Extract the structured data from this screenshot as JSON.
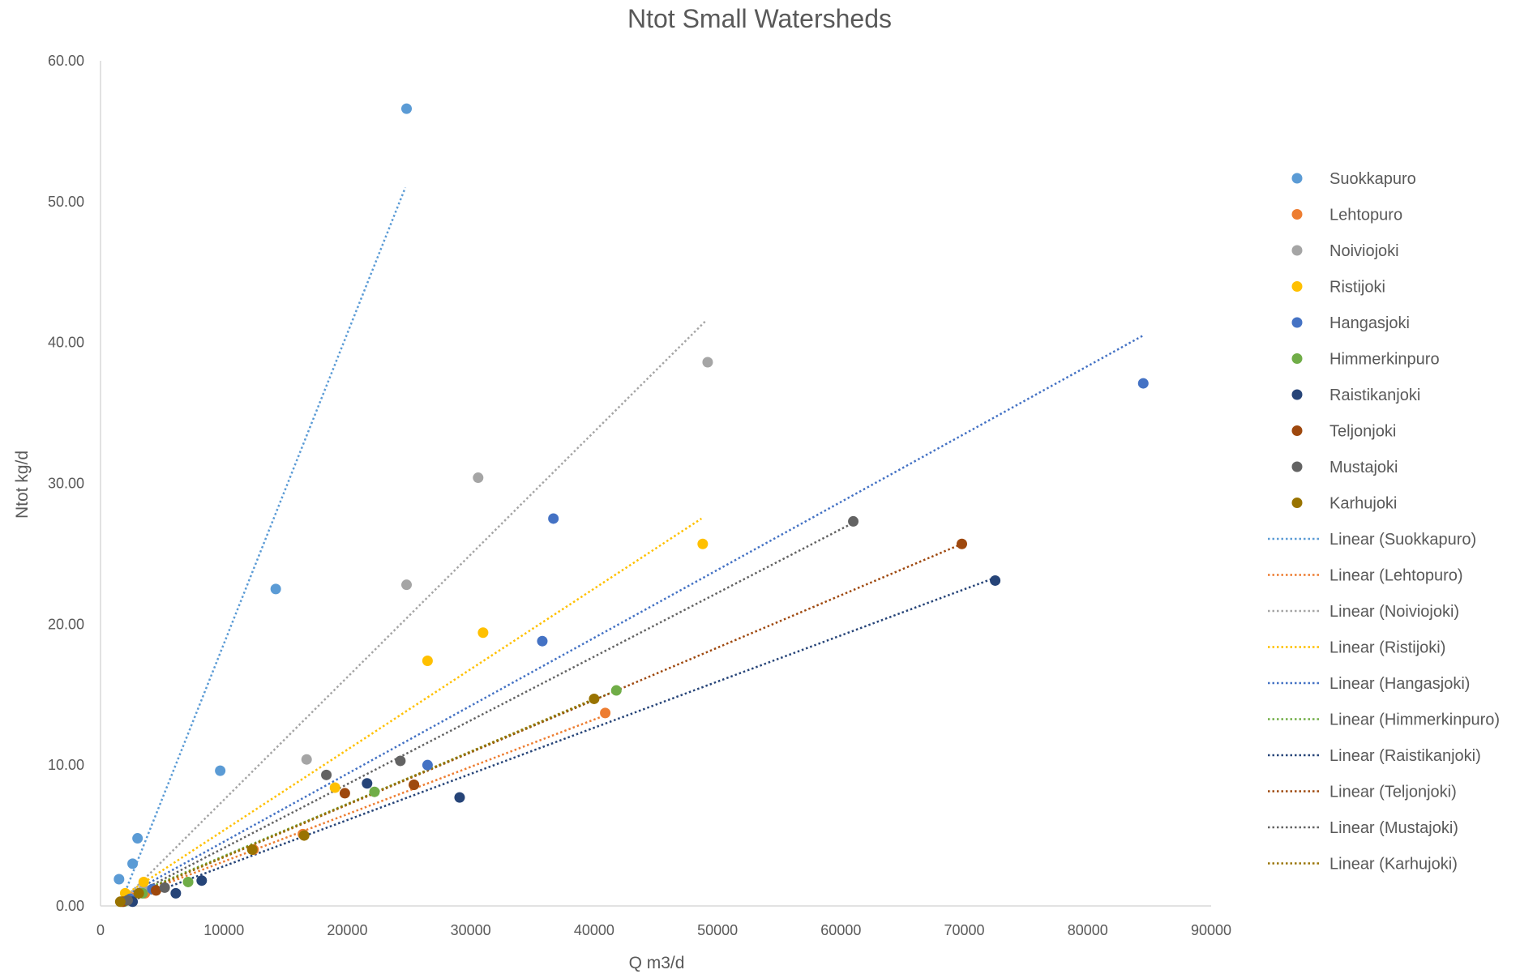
{
  "chart_data": {
    "type": "scatter",
    "title": "Ntot Small Watersheds",
    "xlabel": "Q m3/d",
    "ylabel": "Ntot kg/d",
    "xlim": [
      0,
      90000
    ],
    "ylim": [
      0,
      60
    ],
    "x_ticks": [
      "0",
      "10000",
      "20000",
      "30000",
      "40000",
      "50000",
      "60000",
      "70000",
      "80000",
      "90000"
    ],
    "y_ticks": [
      "0.00",
      "10.00",
      "20.00",
      "30.00",
      "40.00",
      "50.00",
      "60.00"
    ],
    "grid": false,
    "legend_position": "right",
    "series": [
      {
        "name": "Suokkapuro",
        "color": "#5B9BD5",
        "trend_label": "Linear (Suokkapuro)",
        "trend": [
          [
            2000,
            1.0
          ],
          [
            24700,
            51.0
          ]
        ],
        "points": [
          [
            1500,
            1.9
          ],
          [
            2600,
            3.0
          ],
          [
            3000,
            4.8
          ],
          [
            9700,
            9.6
          ],
          [
            14200,
            22.5
          ],
          [
            24800,
            56.6
          ]
        ]
      },
      {
        "name": "Lehtopuro",
        "color": "#ED7D31",
        "trend_label": "Linear (Lehtopuro)",
        "trend": [
          [
            1500,
            0.3
          ],
          [
            40800,
            13.5
          ]
        ],
        "points": [
          [
            1700,
            0.3
          ],
          [
            2500,
            0.6
          ],
          [
            3600,
            0.9
          ],
          [
            12400,
            4.0
          ],
          [
            16400,
            5.1
          ],
          [
            25400,
            8.6
          ],
          [
            40900,
            13.7
          ]
        ]
      },
      {
        "name": "Noiviojoki",
        "color": "#A5A5A5",
        "trend_label": "Linear (Noiviojoki)",
        "trend": [
          [
            2500,
            1.0
          ],
          [
            49000,
            41.5
          ]
        ],
        "points": [
          [
            2300,
            0.6
          ],
          [
            3500,
            1.2
          ],
          [
            16700,
            10.4
          ],
          [
            24800,
            22.8
          ],
          [
            30600,
            30.4
          ],
          [
            49200,
            38.6
          ]
        ]
      },
      {
        "name": "Ristijoki",
        "color": "#FFC000",
        "trend_label": "Linear (Ristijoki)",
        "trend": [
          [
            2000,
            0.8
          ],
          [
            48700,
            27.5
          ]
        ],
        "points": [
          [
            2000,
            0.9
          ],
          [
            3500,
            1.7
          ],
          [
            19000,
            8.4
          ],
          [
            26500,
            17.4
          ],
          [
            31000,
            19.4
          ],
          [
            48800,
            25.7
          ]
        ]
      },
      {
        "name": "Hangasjoki",
        "color": "#4472C4",
        "trend_label": "Linear (Hangasjoki)",
        "trend": [
          [
            2000,
            0.7
          ],
          [
            84500,
            40.5
          ]
        ],
        "points": [
          [
            2400,
            0.5
          ],
          [
            4200,
            1.2
          ],
          [
            26500,
            10.0
          ],
          [
            35800,
            18.8
          ],
          [
            36700,
            27.5
          ],
          [
            84500,
            37.1
          ]
        ]
      },
      {
        "name": "Himmerkinpuro",
        "color": "#70AD47",
        "trend_label": "Linear (Himmerkinpuro)",
        "trend": [
          [
            1500,
            0.4
          ],
          [
            41800,
            15.3
          ]
        ],
        "points": [
          [
            1900,
            0.3
          ],
          [
            3400,
            0.9
          ],
          [
            7100,
            1.7
          ],
          [
            22200,
            8.1
          ],
          [
            41800,
            15.3
          ]
        ]
      },
      {
        "name": "Raistikanjoki",
        "color": "#264478",
        "trend_label": "Linear (Raistikanjoki)",
        "trend": [
          [
            2000,
            0.2
          ],
          [
            72500,
            23.3
          ]
        ],
        "points": [
          [
            2600,
            0.3
          ],
          [
            6100,
            0.9
          ],
          [
            8200,
            1.8
          ],
          [
            21600,
            8.7
          ],
          [
            29100,
            7.7
          ],
          [
            72500,
            23.1
          ]
        ]
      },
      {
        "name": "Teljonjoki",
        "color": "#9E480E",
        "trend_label": "Linear (Teljonjoki)",
        "trend": [
          [
            1500,
            0.3
          ],
          [
            69800,
            25.7
          ]
        ],
        "points": [
          [
            1800,
            0.3
          ],
          [
            4500,
            1.1
          ],
          [
            19800,
            8.0
          ],
          [
            25400,
            8.6
          ],
          [
            69800,
            25.7
          ]
        ]
      },
      {
        "name": "Mustajoki",
        "color": "#636363",
        "trend_label": "Linear (Mustajoki)",
        "trend": [
          [
            2000,
            0.5
          ],
          [
            61000,
            27.2
          ]
        ],
        "points": [
          [
            2200,
            0.4
          ],
          [
            5200,
            1.3
          ],
          [
            18300,
            9.3
          ],
          [
            24300,
            10.3
          ],
          [
            61000,
            27.3
          ]
        ]
      },
      {
        "name": "Karhujoki",
        "color": "#997300",
        "trend_label": "Linear (Karhujoki)",
        "trend": [
          [
            1500,
            0.3
          ],
          [
            40000,
            14.7
          ]
        ],
        "points": [
          [
            1600,
            0.3
          ],
          [
            3100,
            0.9
          ],
          [
            12300,
            4.0
          ],
          [
            16500,
            5.0
          ],
          [
            40000,
            14.7
          ]
        ]
      }
    ]
  }
}
